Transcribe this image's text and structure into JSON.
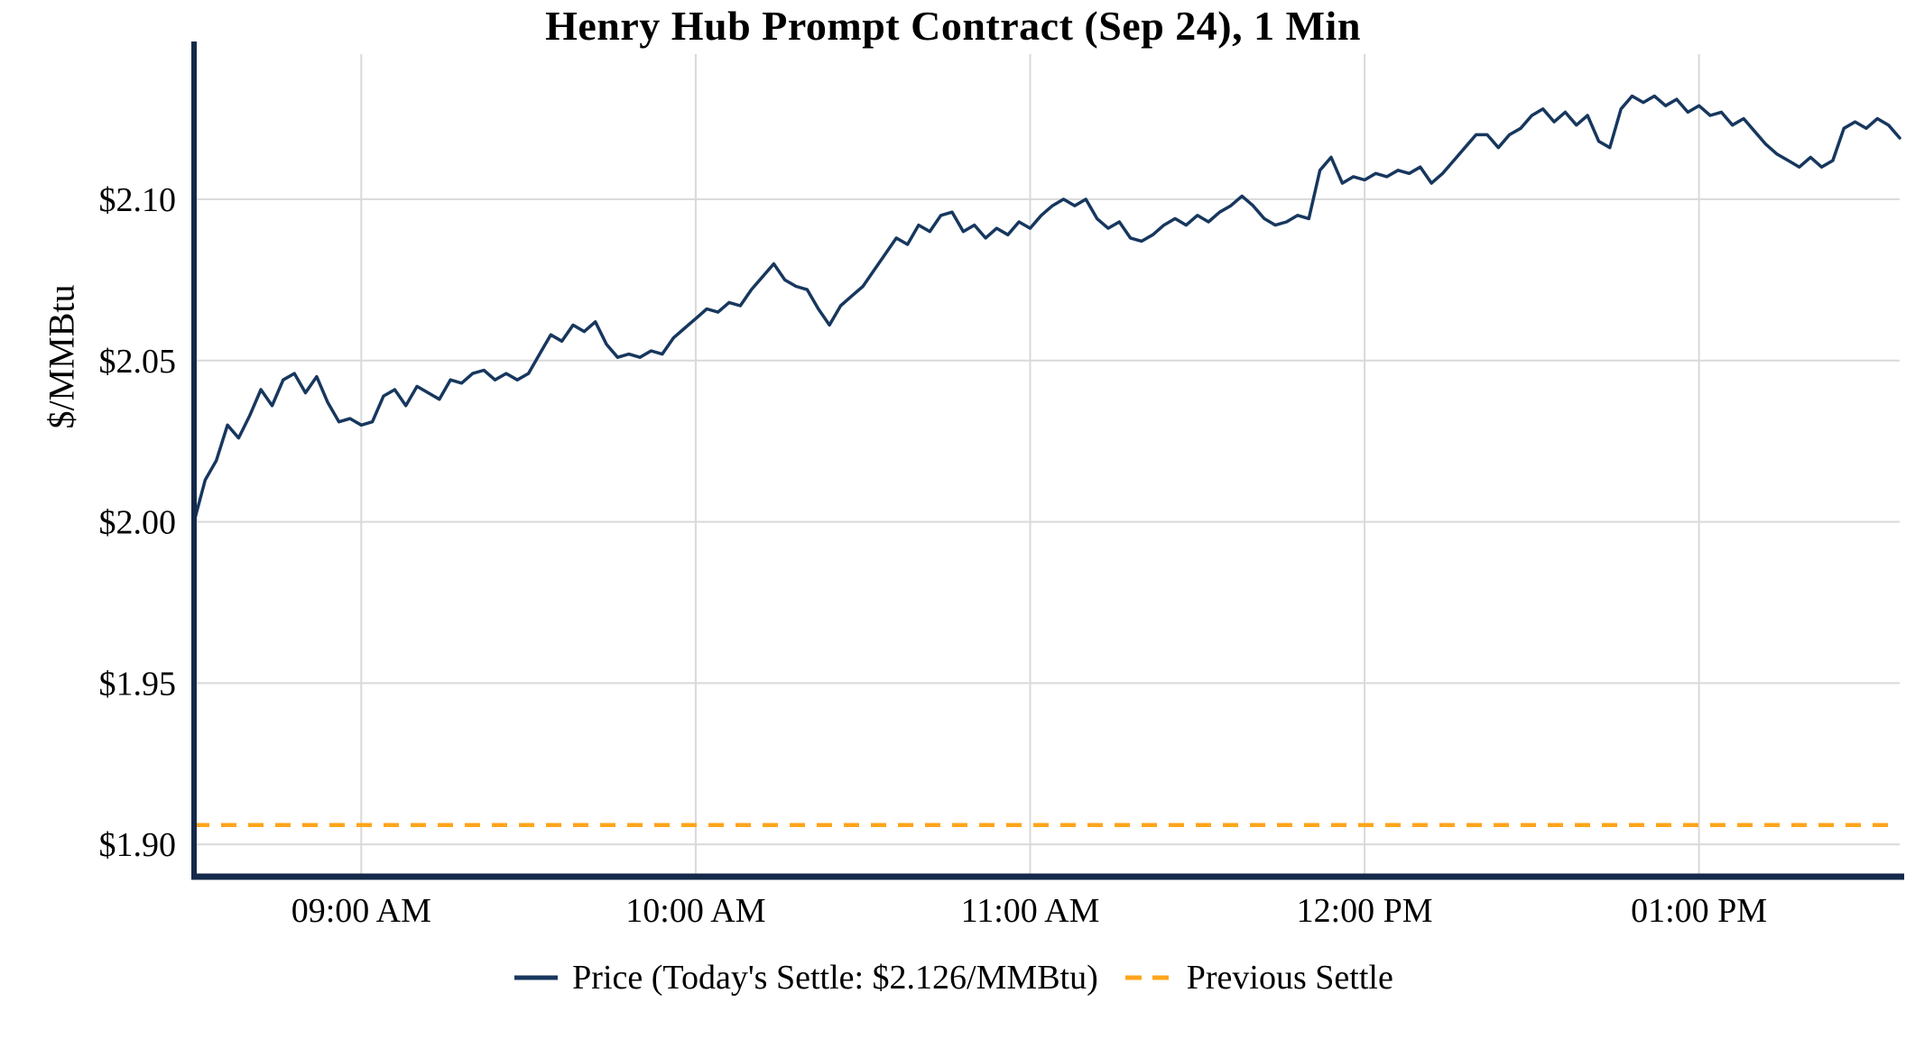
{
  "chart_data": {
    "type": "line",
    "title": "Henry Hub Prompt Contract (Sep 24), 1 Min",
    "xlabel": "",
    "ylabel": "$/MMBtu",
    "grid": true,
    "legend_position": "bottom",
    "axis_color": "#152a4a",
    "grid_color": "#d9d9d9",
    "y_range": [
      1.89,
      2.145
    ],
    "x_range_minutes": [
      0,
      306
    ],
    "x_step_minutes": 2,
    "y_ticks": [
      {
        "value": 1.9,
        "label": "$1.90"
      },
      {
        "value": 1.95,
        "label": "$1.95"
      },
      {
        "value": 2.0,
        "label": "$2.00"
      },
      {
        "value": 2.05,
        "label": "$2.05"
      },
      {
        "value": 2.1,
        "label": "$2.10"
      }
    ],
    "x_ticks": [
      {
        "minutes": 30,
        "label": "09:00 AM"
      },
      {
        "minutes": 90,
        "label": "10:00 AM"
      },
      {
        "minutes": 150,
        "label": "11:00 AM"
      },
      {
        "minutes": 210,
        "label": "12:00 PM"
      },
      {
        "minutes": 270,
        "label": "01:00 PM"
      }
    ],
    "series": [
      {
        "name": "Price (Today's Settle: $2.126/MMBtu)",
        "color": "#17375e",
        "style": "solid",
        "y": [
          2.0,
          2.013,
          2.019,
          2.03,
          2.026,
          2.033,
          2.041,
          2.036,
          2.044,
          2.046,
          2.04,
          2.045,
          2.037,
          2.031,
          2.032,
          2.03,
          2.031,
          2.039,
          2.041,
          2.036,
          2.042,
          2.04,
          2.038,
          2.044,
          2.043,
          2.046,
          2.047,
          2.044,
          2.046,
          2.044,
          2.046,
          2.052,
          2.058,
          2.056,
          2.061,
          2.059,
          2.062,
          2.055,
          2.051,
          2.052,
          2.051,
          2.053,
          2.052,
          2.057,
          2.06,
          2.063,
          2.066,
          2.065,
          2.068,
          2.067,
          2.072,
          2.076,
          2.08,
          2.075,
          2.073,
          2.072,
          2.066,
          2.061,
          2.067,
          2.07,
          2.073,
          2.078,
          2.083,
          2.088,
          2.086,
          2.092,
          2.09,
          2.095,
          2.096,
          2.09,
          2.092,
          2.088,
          2.091,
          2.089,
          2.093,
          2.091,
          2.095,
          2.098,
          2.1,
          2.098,
          2.1,
          2.094,
          2.091,
          2.093,
          2.088,
          2.087,
          2.089,
          2.092,
          2.094,
          2.092,
          2.095,
          2.093,
          2.096,
          2.098,
          2.101,
          2.098,
          2.094,
          2.092,
          2.093,
          2.095,
          2.094,
          2.109,
          2.113,
          2.105,
          2.107,
          2.106,
          2.108,
          2.107,
          2.109,
          2.108,
          2.11,
          2.105,
          2.108,
          2.112,
          2.116,
          2.12,
          2.12,
          2.116,
          2.12,
          2.122,
          2.126,
          2.128,
          2.124,
          2.127,
          2.123,
          2.126,
          2.118,
          2.116,
          2.128,
          2.132,
          2.13,
          2.132,
          2.129,
          2.131,
          2.127,
          2.129,
          2.126,
          2.127,
          2.123,
          2.125,
          2.121,
          2.117,
          2.114,
          2.112,
          2.11,
          2.113,
          2.11,
          2.112,
          2.122,
          2.124,
          2.122,
          2.125,
          2.123,
          2.119
        ]
      },
      {
        "name": "Previous Settle",
        "color": "#ffa51c",
        "style": "dashed",
        "value": 1.906
      }
    ]
  }
}
